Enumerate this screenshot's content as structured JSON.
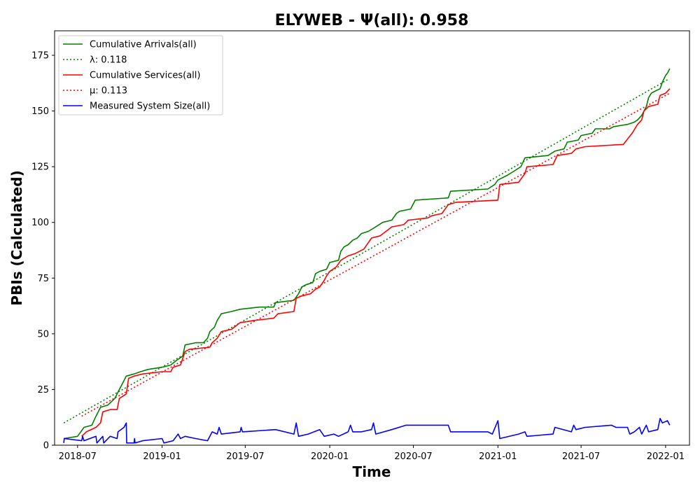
{
  "chart_data": {
    "type": "line",
    "title": "ELYWEB -  Ψ(all): 0.958",
    "xlabel": "Time",
    "ylabel": "PBIs (Calculated)",
    "xlim": [
      "2018-05-12",
      "2022-02-22"
    ],
    "ylim": [
      0,
      186
    ],
    "x_ticks": [
      "2018-07",
      "2019-01",
      "2019-07",
      "2020-01",
      "2020-07",
      "2021-01",
      "2021-07",
      "2022-01"
    ],
    "y_ticks": [
      0,
      25,
      50,
      75,
      100,
      125,
      150,
      175
    ],
    "grid": false,
    "legend_position": "top-left",
    "series": [
      {
        "name": "Cumulative Arrivals(all)",
        "style": "solid",
        "color": "#008000",
        "points": [
          [
            "2018-06-01",
            3
          ],
          [
            "2018-07-01",
            4
          ],
          [
            "2018-07-15",
            8
          ],
          [
            "2018-08-01",
            9
          ],
          [
            "2018-08-10",
            13
          ],
          [
            "2018-08-20",
            17
          ],
          [
            "2018-09-05",
            18
          ],
          [
            "2018-09-20",
            21
          ],
          [
            "2018-09-30",
            25
          ],
          [
            "2018-10-10",
            29
          ],
          [
            "2018-10-15",
            31
          ],
          [
            "2018-11-01",
            32
          ],
          [
            "2018-11-15",
            33
          ],
          [
            "2018-12-01",
            34
          ],
          [
            "2019-01-01",
            35
          ],
          [
            "2019-01-20",
            36
          ],
          [
            "2019-02-01",
            38
          ],
          [
            "2019-02-15",
            40
          ],
          [
            "2019-02-20",
            45
          ],
          [
            "2019-03-15",
            46
          ],
          [
            "2019-04-01",
            46
          ],
          [
            "2019-04-10",
            48
          ],
          [
            "2019-04-15",
            51
          ],
          [
            "2019-04-25",
            53
          ],
          [
            "2019-05-01",
            56
          ],
          [
            "2019-05-10",
            59
          ],
          [
            "2019-06-01",
            60
          ],
          [
            "2019-06-20",
            61
          ],
          [
            "2019-08-01",
            62
          ],
          [
            "2019-09-01",
            62
          ],
          [
            "2019-09-05",
            64
          ],
          [
            "2019-10-15",
            65
          ],
          [
            "2019-10-25",
            68
          ],
          [
            "2019-11-01",
            71
          ],
          [
            "2019-11-10",
            72
          ],
          [
            "2019-11-25",
            73
          ],
          [
            "2019-12-01",
            77
          ],
          [
            "2019-12-10",
            78
          ],
          [
            "2019-12-25",
            79
          ],
          [
            "2020-01-01",
            82
          ],
          [
            "2020-01-20",
            83
          ],
          [
            "2020-01-25",
            87
          ],
          [
            "2020-02-01",
            89
          ],
          [
            "2020-02-10",
            90
          ],
          [
            "2020-02-20",
            92
          ],
          [
            "2020-03-01",
            93
          ],
          [
            "2020-03-10",
            95
          ],
          [
            "2020-03-25",
            96
          ],
          [
            "2020-04-10",
            98
          ],
          [
            "2020-04-25",
            100
          ],
          [
            "2020-05-15",
            101
          ],
          [
            "2020-05-25",
            104
          ],
          [
            "2020-06-01",
            105
          ],
          [
            "2020-06-25",
            106
          ],
          [
            "2020-07-05",
            110
          ],
          [
            "2020-09-15",
            111
          ],
          [
            "2020-09-20",
            114
          ],
          [
            "2020-12-10",
            115
          ],
          [
            "2020-12-25",
            117
          ],
          [
            "2021-01-01",
            119
          ],
          [
            "2021-01-20",
            121
          ],
          [
            "2021-02-05",
            123
          ],
          [
            "2021-02-20",
            125
          ],
          [
            "2021-03-01",
            129
          ],
          [
            "2021-04-20",
            130
          ],
          [
            "2021-05-05",
            132
          ],
          [
            "2021-05-25",
            133
          ],
          [
            "2021-06-01",
            136
          ],
          [
            "2021-06-25",
            137
          ],
          [
            "2021-07-01",
            139
          ],
          [
            "2021-07-25",
            140
          ],
          [
            "2021-08-01",
            142
          ],
          [
            "2021-09-01",
            142
          ],
          [
            "2021-09-10",
            143
          ],
          [
            "2021-10-10",
            144
          ],
          [
            "2021-10-25",
            145
          ],
          [
            "2021-11-01",
            146
          ],
          [
            "2021-11-10",
            148
          ],
          [
            "2021-11-20",
            152
          ],
          [
            "2021-11-25",
            156
          ],
          [
            "2021-12-01",
            158
          ],
          [
            "2021-12-10",
            159
          ],
          [
            "2021-12-20",
            160
          ],
          [
            "2021-12-25",
            163
          ],
          [
            "2022-01-01",
            166
          ],
          [
            "2022-01-05",
            167
          ],
          [
            "2022-01-10",
            169
          ]
        ]
      },
      {
        "name": "λ: 0.118",
        "style": "dotted",
        "color": "#008000",
        "points": [
          [
            "2018-06-01",
            10
          ],
          [
            "2022-01-05",
            164
          ]
        ]
      },
      {
        "name": "Cumulative Services(all)",
        "style": "solid",
        "color": "#ff0000",
        "points": [
          [
            "2018-07-10",
            4
          ],
          [
            "2018-07-20",
            6
          ],
          [
            "2018-08-10",
            8
          ],
          [
            "2018-08-20",
            10
          ],
          [
            "2018-08-25",
            15
          ],
          [
            "2018-09-10",
            16
          ],
          [
            "2018-09-25",
            16
          ],
          [
            "2018-09-30",
            21
          ],
          [
            "2018-10-15",
            23
          ],
          [
            "2018-10-20",
            30
          ],
          [
            "2018-11-01",
            31
          ],
          [
            "2018-11-20",
            32
          ],
          [
            "2019-01-01",
            33
          ],
          [
            "2019-01-20",
            33
          ],
          [
            "2019-01-25",
            35
          ],
          [
            "2019-02-10",
            36
          ],
          [
            "2019-02-20",
            42
          ],
          [
            "2019-03-01",
            43
          ],
          [
            "2019-04-15",
            44
          ],
          [
            "2019-04-20",
            46
          ],
          [
            "2019-05-01",
            48
          ],
          [
            "2019-05-10",
            51
          ],
          [
            "2019-06-01",
            52
          ],
          [
            "2019-06-20",
            55
          ],
          [
            "2019-07-20",
            56
          ],
          [
            "2019-09-01",
            57
          ],
          [
            "2019-09-10",
            59
          ],
          [
            "2019-10-15",
            60
          ],
          [
            "2019-10-20",
            66
          ],
          [
            "2019-11-01",
            67
          ],
          [
            "2019-11-20",
            68
          ],
          [
            "2019-12-01",
            70
          ],
          [
            "2019-12-10",
            71
          ],
          [
            "2019-12-20",
            74
          ],
          [
            "2019-12-25",
            76
          ],
          [
            "2020-01-01",
            78
          ],
          [
            "2020-01-15",
            80
          ],
          [
            "2020-01-25",
            83
          ],
          [
            "2020-02-10",
            85
          ],
          [
            "2020-02-25",
            86
          ],
          [
            "2020-03-15",
            88
          ],
          [
            "2020-04-01",
            93
          ],
          [
            "2020-04-20",
            94
          ],
          [
            "2020-05-15",
            98
          ],
          [
            "2020-06-10",
            99
          ],
          [
            "2020-06-20",
            101
          ],
          [
            "2020-08-01",
            102
          ],
          [
            "2020-08-10",
            103
          ],
          [
            "2020-09-01",
            104
          ],
          [
            "2020-09-15",
            108
          ],
          [
            "2020-10-01",
            109
          ],
          [
            "2021-01-01",
            110
          ],
          [
            "2021-01-05",
            117
          ],
          [
            "2021-02-15",
            118
          ],
          [
            "2021-03-01",
            122
          ],
          [
            "2021-03-05",
            125
          ],
          [
            "2021-05-01",
            126
          ],
          [
            "2021-05-10",
            130
          ],
          [
            "2021-06-10",
            131
          ],
          [
            "2021-06-20",
            133
          ],
          [
            "2021-07-10",
            134
          ],
          [
            "2021-10-01",
            135
          ],
          [
            "2021-10-20",
            140
          ],
          [
            "2021-11-01",
            144
          ],
          [
            "2021-11-10",
            146
          ],
          [
            "2021-11-15",
            150
          ],
          [
            "2021-11-25",
            152
          ],
          [
            "2021-12-15",
            153
          ],
          [
            "2021-12-20",
            157
          ],
          [
            "2022-01-01",
            158
          ],
          [
            "2022-01-10",
            160
          ]
        ]
      },
      {
        "name": "μ: 0.113",
        "style": "dotted",
        "color": "#ff0000",
        "points": [
          [
            "2018-07-10",
            13
          ],
          [
            "2022-01-10",
            158
          ]
        ]
      },
      {
        "name": "Measured System Size(all)",
        "style": "solid",
        "color": "#0000ff",
        "points": [
          [
            "2018-06-01",
            1
          ],
          [
            "2018-06-02",
            3
          ],
          [
            "2018-07-10",
            2
          ],
          [
            "2018-07-12",
            4
          ],
          [
            "2018-07-15",
            2
          ],
          [
            "2018-08-10",
            4
          ],
          [
            "2018-08-12",
            1
          ],
          [
            "2018-08-25",
            4
          ],
          [
            "2018-08-27",
            1
          ],
          [
            "2018-09-10",
            4
          ],
          [
            "2018-09-25",
            3
          ],
          [
            "2018-09-27",
            6
          ],
          [
            "2018-10-10",
            8
          ],
          [
            "2018-10-15",
            10
          ],
          [
            "2018-10-16",
            1
          ],
          [
            "2018-11-01",
            1
          ],
          [
            "2018-11-02",
            3
          ],
          [
            "2018-11-03",
            1
          ],
          [
            "2018-11-20",
            2
          ],
          [
            "2019-01-01",
            3
          ],
          [
            "2019-01-05",
            1
          ],
          [
            "2019-01-25",
            2
          ],
          [
            "2019-02-05",
            5
          ],
          [
            "2019-02-10",
            3
          ],
          [
            "2019-02-20",
            4
          ],
          [
            "2019-03-15",
            3
          ],
          [
            "2019-04-10",
            2
          ],
          [
            "2019-04-15",
            4
          ],
          [
            "2019-04-20",
            6
          ],
          [
            "2019-05-01",
            5
          ],
          [
            "2019-05-05",
            8
          ],
          [
            "2019-05-10",
            5
          ],
          [
            "2019-06-20",
            6
          ],
          [
            "2019-06-22",
            8
          ],
          [
            "2019-06-25",
            6
          ],
          [
            "2019-09-05",
            7
          ],
          [
            "2019-10-15",
            5
          ],
          [
            "2019-10-20",
            10
          ],
          [
            "2019-10-25",
            4
          ],
          [
            "2019-11-15",
            5
          ],
          [
            "2019-12-10",
            7
          ],
          [
            "2019-12-20",
            4
          ],
          [
            "2020-01-10",
            5
          ],
          [
            "2020-01-20",
            4
          ],
          [
            "2020-02-10",
            6
          ],
          [
            "2020-02-15",
            9
          ],
          [
            "2020-02-20",
            6
          ],
          [
            "2020-03-10",
            6
          ],
          [
            "2020-04-01",
            7
          ],
          [
            "2020-04-05",
            10
          ],
          [
            "2020-04-10",
            5
          ],
          [
            "2020-05-15",
            7
          ],
          [
            "2020-06-15",
            9
          ],
          [
            "2020-09-15",
            9
          ],
          [
            "2020-09-20",
            6
          ],
          [
            "2020-12-10",
            6
          ],
          [
            "2020-12-20",
            5
          ],
          [
            "2021-01-01",
            11
          ],
          [
            "2021-01-05",
            3
          ],
          [
            "2021-02-15",
            5
          ],
          [
            "2021-03-01",
            6
          ],
          [
            "2021-03-05",
            4
          ],
          [
            "2021-05-01",
            5
          ],
          [
            "2021-05-05",
            8
          ],
          [
            "2021-06-10",
            6
          ],
          [
            "2021-06-15",
            9
          ],
          [
            "2021-06-20",
            7
          ],
          [
            "2021-07-10",
            8
          ],
          [
            "2021-09-05",
            9
          ],
          [
            "2021-09-15",
            8
          ],
          [
            "2021-10-10",
            8
          ],
          [
            "2021-10-15",
            5
          ],
          [
            "2021-10-25",
            6
          ],
          [
            "2021-11-05",
            8
          ],
          [
            "2021-11-10",
            5
          ],
          [
            "2021-11-20",
            9
          ],
          [
            "2021-11-25",
            6
          ],
          [
            "2021-12-15",
            7
          ],
          [
            "2021-12-20",
            12
          ],
          [
            "2021-12-25",
            10
          ],
          [
            "2022-01-05",
            11
          ],
          [
            "2022-01-10",
            9
          ]
        ]
      }
    ]
  }
}
